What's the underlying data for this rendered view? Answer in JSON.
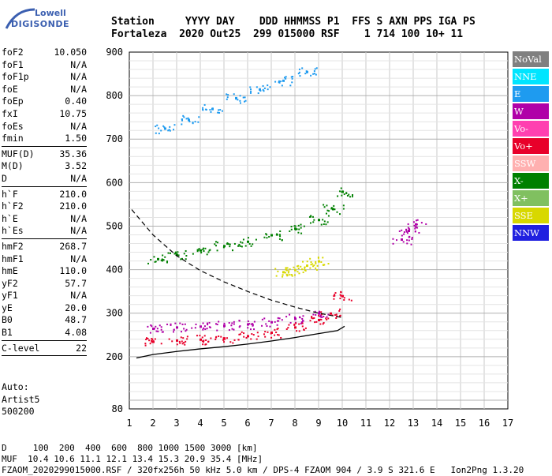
{
  "logo": {
    "line1": "Lowell",
    "line2": "DIGISONDE"
  },
  "header": {
    "labels": "Station     YYYY DAY    DDD HHMMSS P1  FFS S AXN PPS IGA PS",
    "values": "Fortaleza  2020 Out25  299 015000 RSF    1 714 100 10+ 11"
  },
  "params_groups": [
    [
      {
        "key": "foF2",
        "value": "10.050"
      },
      {
        "key": "foF1",
        "value": "N/A"
      },
      {
        "key": "foF1p",
        "value": "N/A"
      },
      {
        "key": "foE",
        "value": "N/A"
      },
      {
        "key": "foEp",
        "value": "0.40"
      },
      {
        "key": "fxI",
        "value": "10.75"
      },
      {
        "key": "foEs",
        "value": "N/A"
      },
      {
        "key": "fmin",
        "value": "1.50"
      }
    ],
    [
      {
        "key": "MUF(D)",
        "value": "35.36"
      },
      {
        "key": "M(D)",
        "value": "3.52"
      },
      {
        "key": "D",
        "value": "N/A"
      }
    ],
    [
      {
        "key": "h`F",
        "value": "210.0"
      },
      {
        "key": "h`F2",
        "value": "210.0"
      },
      {
        "key": "h`E",
        "value": "N/A"
      },
      {
        "key": "h`Es",
        "value": "N/A"
      }
    ],
    [
      {
        "key": "hmF2",
        "value": "268.7"
      },
      {
        "key": "hmF1",
        "value": "N/A"
      },
      {
        "key": "hmE",
        "value": "110.0"
      },
      {
        "key": "yF2",
        "value": "57.7"
      },
      {
        "key": "yF1",
        "value": "N/A"
      },
      {
        "key": "yE",
        "value": "20.0"
      },
      {
        "key": "B0",
        "value": "48.7"
      },
      {
        "key": "B1",
        "value": "4.08"
      }
    ],
    [
      {
        "key": "C-level",
        "value": "22"
      }
    ]
  ],
  "auto": {
    "line1": "Auto:",
    "line2": "Artist5",
    "line3": "500200"
  },
  "legend": [
    {
      "label": "NoVal",
      "color": "#808080"
    },
    {
      "label": "NNE",
      "color": "#00e5ff"
    },
    {
      "label": "E",
      "color": "#1e9bf0"
    },
    {
      "label": "W",
      "color": "#b000a8"
    },
    {
      "label": "Vo-",
      "color": "#ff40b0"
    },
    {
      "label": "Vo+",
      "color": "#e8002a"
    },
    {
      "label": "SSW",
      "color": "#ffb0b0"
    },
    {
      "label": "X-",
      "color": "#008000"
    },
    {
      "label": "X+",
      "color": "#80c060"
    },
    {
      "label": "SSE",
      "color": "#d8d800"
    },
    {
      "label": "NNW",
      "color": "#2020e0"
    }
  ],
  "bottom": {
    "line1": "D     100  200  400  600  800 1000 1500 3000 [km]",
    "line2": "MUF  10.4 10.6 11.1 12.1 13.4 15.3 20.9 35.4 [MHz]",
    "line3": "FZAOM_2020299015000.RSF / 320fx256h 50 kHz 5.0 km / DPS-4 FZAOM 904 / 3.9 S 321.6 E   Ion2Png 1.3.20"
  },
  "chart_data": {
    "type": "scatter",
    "title": "",
    "xlabel": "",
    "ylabel": "",
    "xlim": [
      1,
      17
    ],
    "ylim": [
      80,
      900
    ],
    "x_ticks": [
      1,
      2,
      3,
      4,
      5,
      6,
      7,
      8,
      9,
      10,
      11,
      12,
      13,
      14,
      15,
      16,
      17
    ],
    "y_ticks": [
      80,
      200,
      300,
      400,
      500,
      600,
      700,
      800,
      900
    ],
    "grid": true,
    "series": [
      {
        "name": "X-",
        "color": "#008000",
        "x": [
          2.2,
          3,
          4,
          5,
          6,
          7,
          8,
          9,
          9.6,
          10
        ],
        "y": [
          425,
          435,
          445,
          455,
          465,
          480,
          495,
          515,
          540,
          580
        ]
      },
      {
        "name": "W",
        "color": "#b000a8",
        "x": [
          2,
          3,
          4,
          5,
          6,
          7,
          8,
          9
        ],
        "y": [
          265,
          268,
          270,
          272,
          275,
          280,
          288,
          300
        ]
      },
      {
        "name": "Vo+",
        "color": "#e8002a",
        "x": [
          2,
          3,
          4,
          5,
          6,
          7,
          8,
          9,
          9.5,
          10
        ],
        "y": [
          235,
          238,
          240,
          243,
          248,
          256,
          268,
          285,
          300,
          340
        ]
      },
      {
        "name": "E",
        "color": "#1e9bf0",
        "x": [
          2.5,
          3.5,
          4.5,
          5.5,
          6.5,
          7.5,
          8.5
        ],
        "y": [
          725,
          745,
          770,
          795,
          815,
          835,
          855
        ]
      },
      {
        "name": "SSE",
        "color": "#d8d800",
        "x": [
          7.5,
          8,
          8.5,
          9
        ],
        "y": [
          395,
          400,
          410,
          420
        ]
      },
      {
        "name": "W",
        "color": "#b000a8",
        "x": [
          12.5,
          12.8,
          13.1
        ],
        "y": [
          470,
          490,
          505
        ]
      }
    ],
    "profile_curve": {
      "x": [
        1.3,
        2,
        3,
        4,
        5,
        6,
        7,
        8,
        9,
        9.8,
        10.1
      ],
      "y": [
        197,
        205,
        212,
        218,
        223,
        229,
        236,
        244,
        253,
        260,
        270
      ]
    },
    "dashed_curve": {
      "x": [
        1.1,
        2,
        3,
        4,
        5,
        6,
        7,
        8,
        9,
        10
      ],
      "y": [
        538,
        480,
        432,
        398,
        372,
        350,
        330,
        314,
        300,
        290
      ]
    }
  }
}
